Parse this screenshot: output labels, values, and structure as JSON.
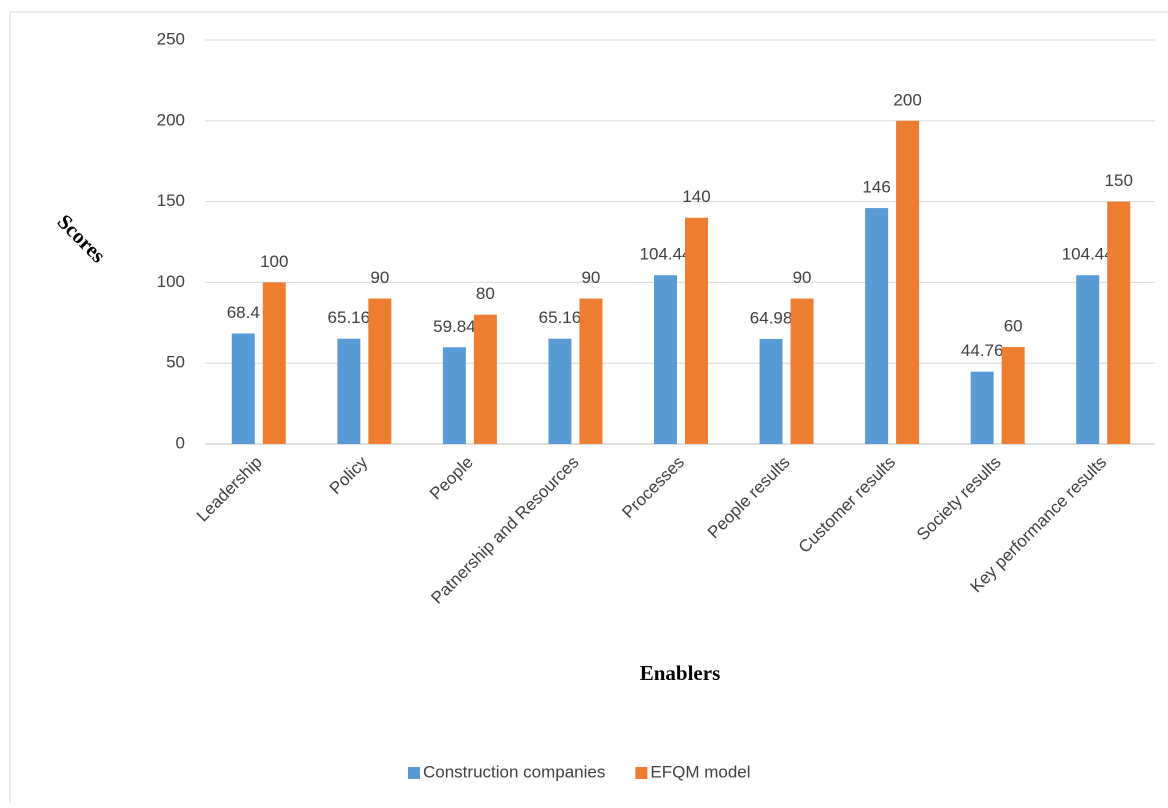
{
  "chart_data": {
    "type": "bar",
    "x_label": "Enablers",
    "y_label": "Scores",
    "categories": [
      "Leadership",
      "Policy",
      "People",
      "Patnership and Resources",
      "Processes",
      "People results",
      "Customer results",
      "Society results",
      "Key performance results"
    ],
    "series": [
      {
        "name": "Construction companies",
        "color": "#5b9bd5",
        "values": [
          68.4,
          65.16,
          59.84,
          65.16,
          104.44,
          64.98,
          146,
          44.76,
          104.44
        ]
      },
      {
        "name": "EFQM model",
        "color": "#ed7d31",
        "values": [
          100,
          90,
          80,
          90,
          140,
          90,
          200,
          60,
          150
        ]
      }
    ],
    "ylim": [
      0,
      250
    ],
    "yticks": [
      0,
      50,
      100,
      150,
      200,
      250
    ],
    "grid": true,
    "legend": "bottom"
  }
}
